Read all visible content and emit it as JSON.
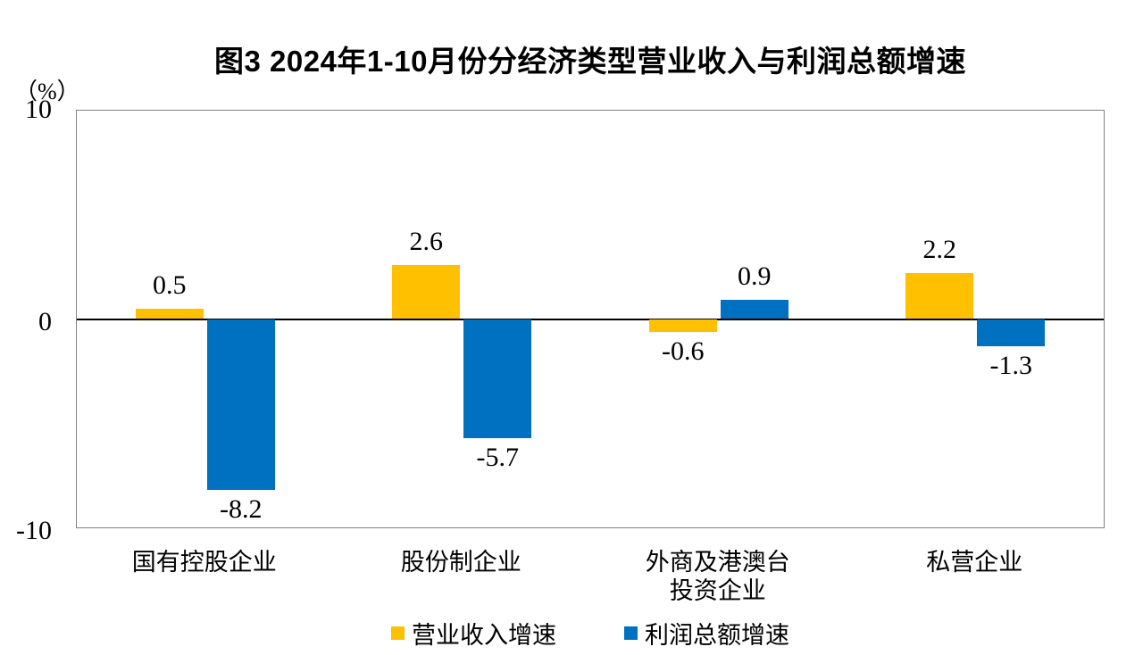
{
  "chart": {
    "title": "图3  2024年1-10月份分经济类型营业收入与利润总额增速",
    "unit_label": "（%）",
    "y_tick_labels": [
      "10",
      "0",
      "-10"
    ]
  },
  "chart_data": {
    "type": "bar",
    "title": "图3  2024年1-10月份分经济类型营业收入与利润总额增速",
    "categories": [
      "国有控股企业",
      "股份制企业",
      "外商及港澳台\n投资企业",
      "私营企业"
    ],
    "series": [
      {
        "name": "营业收入增速",
        "color": "#FFC000",
        "values": [
          0.5,
          2.6,
          -0.6,
          2.2
        ]
      },
      {
        "name": "利润总额增速",
        "color": "#0070C0",
        "values": [
          -8.2,
          -5.7,
          0.9,
          -1.3
        ]
      }
    ],
    "xlabel": "",
    "ylabel": "（%）",
    "ylim": [
      -10,
      10
    ],
    "y_ticks": [
      10,
      0,
      -10
    ],
    "grid": false,
    "legend_position": "bottom",
    "axis_color": "#808080",
    "zero_line_color": "#000000"
  }
}
